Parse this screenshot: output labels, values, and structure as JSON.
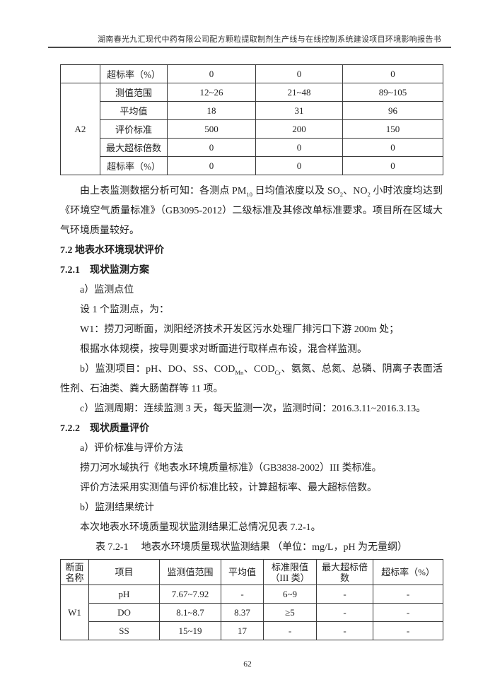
{
  "header": {
    "title": "湖南春光九汇现代中药有限公司配方颗粒提取制剂生产线与在线控制系统建设项目环境影响报告书"
  },
  "air_table": {
    "carryover_row": {
      "label": "超标率（%）",
      "values": [
        "0",
        "0",
        "0"
      ]
    },
    "group_label": "A2",
    "rows": [
      {
        "label": "测值范围",
        "values": [
          "12~26",
          "21~48",
          "89~105"
        ]
      },
      {
        "label": "平均值",
        "values": [
          "18",
          "31",
          "96"
        ]
      },
      {
        "label": "评价标准",
        "values": [
          "500",
          "200",
          "150"
        ]
      },
      {
        "label": "最大超标倍数",
        "values": [
          "0",
          "0",
          "0"
        ]
      },
      {
        "label": "超标率（%）",
        "values": [
          "0",
          "0",
          "0"
        ]
      }
    ]
  },
  "body": {
    "para_air_summary": [
      {
        "t": "由上表监测数据分析可知：各测点 PM"
      },
      {
        "t": "10",
        "sub": true
      },
      {
        "t": " 日均值浓度以及 SO"
      },
      {
        "t": "2",
        "sub": true
      },
      {
        "t": "、NO"
      },
      {
        "t": "2",
        "sub": true
      },
      {
        "t": " 小时浓度均达到《环境空气质量标准》（GB3095-2012）二级标准及其修改单标准要求。项目所在区域大气环境质量较好。"
      }
    ],
    "heading_72": "7.2 地表水环境现状评价",
    "heading_721": "7.2.1　现状监测方案",
    "line_a_points": "a）监测点位",
    "line_set_point": "设 1 个监测点，为：",
    "line_w1": "W1：捞刀河断面，浏阳经济技术开发区污水处理厂排污口下游 200m 处；",
    "line_basis": "根据水体规模，按导则要求对断面进行取样点布设，混合样监测。",
    "para_items": [
      {
        "t": "b）监测项目：pH、DO、SS、COD"
      },
      {
        "t": "Mn",
        "sub": true
      },
      {
        "t": "、COD"
      },
      {
        "t": "Cr",
        "sub": true
      },
      {
        "t": "、氨氮、总氮、总磷、阴离子表面活性剂、石油类、粪大肠菌群等 11 项。"
      }
    ],
    "line_period": "c）监测周期：连续监测 3 天，每天监测一次，监测时间：2016.3.11~2016.3.13。",
    "heading_722": "7.2.2　现状质量评价",
    "line_eval_title": "a）评价标准与评价方法",
    "line_standard": "捞刀河水域执行《地表水环境质量标准》（GB3838-2002）III 类标准。",
    "line_method": "评价方法采用实测值与评价标准比较，计算超标率、最大超标倍数。",
    "line_result_title": "b）监测结果统计",
    "line_result_ref": "本次地表水环境质量现状监测结果汇总情况见表 7.2-1。"
  },
  "water_table": {
    "caption_label": "表 7.2-1",
    "caption_title": "地表水环境质量现状监测结果 （单位：mg/L，pH 为无量纲）",
    "headers": [
      "断面名称",
      "项目",
      "监测值范围",
      "平均值",
      "标准限值（III 类）",
      "最大超标倍数",
      "超标率（%）"
    ],
    "group_label": "W1",
    "rows": [
      {
        "item": "pH",
        "range": "7.67~7.92",
        "avg": "-",
        "limit": "6~9",
        "max_ratio": "-",
        "rate": "-"
      },
      {
        "item": "DO",
        "range": "8.1~8.7",
        "avg": "8.37",
        "limit": "≥5",
        "max_ratio": "-",
        "rate": "-"
      },
      {
        "item": "SS",
        "range": "15~19",
        "avg": "17",
        "limit": "-",
        "max_ratio": "-",
        "rate": "-"
      }
    ]
  },
  "footer": {
    "page_number": "62"
  }
}
